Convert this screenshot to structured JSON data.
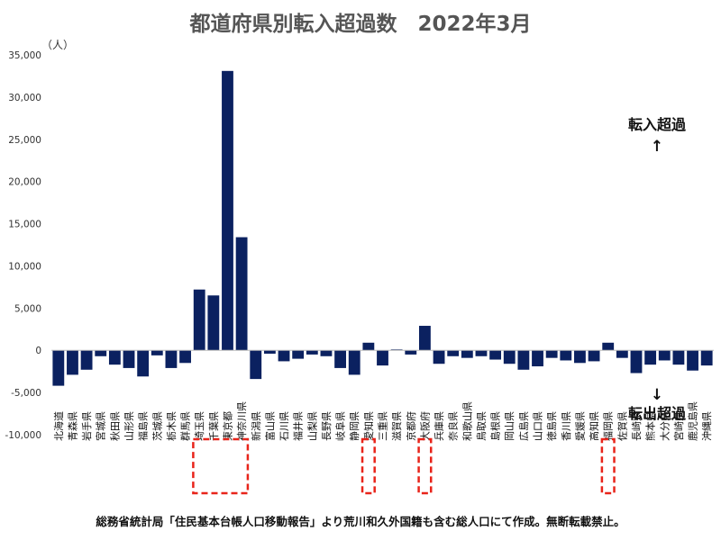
{
  "chart_data": {
    "type": "bar",
    "title": "都道府県別転入超過数　2022年3月",
    "y_unit": "（人）",
    "ylim": [
      -10000,
      35000
    ],
    "yticks": [
      -10000,
      -5000,
      0,
      5000,
      10000,
      15000,
      20000,
      25000,
      30000,
      35000
    ],
    "ytick_labels": [
      "-10,000",
      "-5,000",
      "0",
      "5,000",
      "10,000",
      "15,000",
      "20,000",
      "25,000",
      "30,000",
      "35,000"
    ],
    "grid": false,
    "bar_color": "#0b2160",
    "categories": [
      "北海道",
      "青森県",
      "岩手県",
      "宮城県",
      "秋田県",
      "山形県",
      "福島県",
      "茨城県",
      "栃木県",
      "群馬県",
      "埼玉県",
      "千葉県",
      "東京都",
      "神奈川県",
      "新潟県",
      "富山県",
      "石川県",
      "福井県",
      "山梨県",
      "長野県",
      "岐阜県",
      "静岡県",
      "愛知県",
      "三重県",
      "滋賀県",
      "京都府",
      "大阪府",
      "兵庫県",
      "奈良県",
      "和歌山県",
      "鳥取県",
      "島根県",
      "岡山県",
      "広島県",
      "山口県",
      "徳島県",
      "香川県",
      "愛媛県",
      "高知県",
      "福岡県",
      "佐賀県",
      "長崎県",
      "熊本県",
      "大分県",
      "宮崎県",
      "鹿児島県",
      "沖縄県"
    ],
    "values": [
      -4200,
      -2900,
      -2300,
      -700,
      -1700,
      -2100,
      -3100,
      -600,
      -2100,
      -1500,
      7200,
      6500,
      33100,
      13400,
      -3400,
      -400,
      -1300,
      -1000,
      -500,
      -700,
      -2100,
      -2900,
      900,
      -1800,
      100,
      -500,
      2900,
      -1600,
      -700,
      -900,
      -700,
      -1100,
      -1600,
      -2300,
      -1900,
      -900,
      -1200,
      -1500,
      -1300,
      900,
      -900,
      -2700,
      -1700,
      -1200,
      -1700,
      -2400,
      -1800
    ],
    "highlighted": [
      "埼玉県",
      "千葉県",
      "東京都",
      "神奈川県",
      "愛知県",
      "大阪府",
      "福岡県"
    ],
    "highlight_color": "#e8241a",
    "annotations": {
      "up_label": "転入超過",
      "up_arrow": "↑",
      "down_label": "転出超過",
      "down_arrow": "↓"
    },
    "source_note": "総務省統計局「住民基本台帳人口移動報告」より荒川和久外国籍も含む総人口にて作成。無断転載禁止。"
  }
}
